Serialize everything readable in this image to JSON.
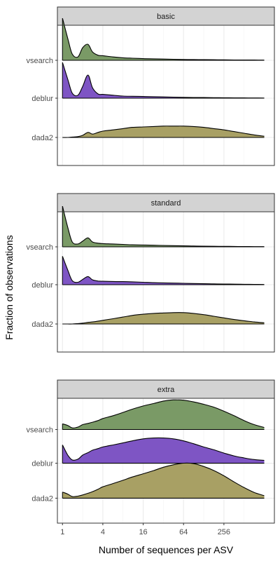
{
  "chart_data": {
    "type": "area",
    "subtype": "ridgeline-density",
    "xlabel": "Number of sequences per ASV",
    "ylabel": "Fraction of observations",
    "x_scale": "log2",
    "x_ticks": [
      1,
      4,
      16,
      64,
      256
    ],
    "x_tick_labels": [
      "1",
      "4",
      "16",
      "64",
      "256"
    ],
    "xlim": [
      0.84,
      1450
    ],
    "grid": true,
    "facets": [
      "basic",
      "standard",
      "extra"
    ],
    "methods": [
      "vsearch",
      "deblur",
      "dada2"
    ],
    "colors": {
      "vsearch": "#7a9a66",
      "deblur": "#7e55c4",
      "dada2": "#a8a064",
      "strip": "#d3d3d3",
      "panel_border": "#333333",
      "grid": "#ebebeb"
    },
    "x": [
      1,
      1.2,
      1.4,
      1.7,
      2,
      2.4,
      2.8,
      3.4,
      4,
      5.7,
      8,
      11,
      16,
      23,
      32,
      45,
      64,
      90,
      128,
      181,
      256,
      362,
      512,
      724,
      1024
    ],
    "panels": [
      {
        "name": "basic",
        "series": [
          {
            "name": "vsearch",
            "values": [
              1.0,
              0.52,
              0.15,
              0.08,
              0.3,
              0.38,
              0.2,
              0.12,
              0.11,
              0.08,
              0.06,
              0.05,
              0.04,
              0.035,
              0.03,
              0.025,
              0.02,
              0.018,
              0.015,
              0.013,
              0.011,
              0.009,
              0.008,
              0.006,
              0.005
            ]
          },
          {
            "name": "deblur",
            "values": [
              0.85,
              0.45,
              0.12,
              0.07,
              0.28,
              0.55,
              0.25,
              0.1,
              0.09,
              0.07,
              0.05,
              0.045,
              0.04,
              0.035,
              0.03,
              0.025,
              0.02,
              0.017,
              0.015,
              0.012,
              0.01,
              0.008,
              0.006,
              0.005,
              0.004
            ]
          },
          {
            "name": "dada2",
            "values": [
              0.0,
              0.0,
              0.01,
              0.02,
              0.05,
              0.12,
              0.08,
              0.12,
              0.15,
              0.18,
              0.21,
              0.24,
              0.25,
              0.26,
              0.27,
              0.27,
              0.27,
              0.26,
              0.24,
              0.21,
              0.18,
              0.14,
              0.1,
              0.06,
              0.03
            ]
          }
        ]
      },
      {
        "name": "standard",
        "series": [
          {
            "name": "vsearch",
            "values": [
              1.0,
              0.48,
              0.12,
              0.07,
              0.14,
              0.22,
              0.12,
              0.09,
              0.08,
              0.07,
              0.06,
              0.05,
              0.045,
              0.04,
              0.035,
              0.03,
              0.025,
              0.02,
              0.017,
              0.014,
              0.012,
              0.01,
              0.008,
              0.006,
              0.005
            ]
          },
          {
            "name": "deblur",
            "values": [
              0.7,
              0.36,
              0.1,
              0.06,
              0.13,
              0.2,
              0.12,
              0.09,
              0.085,
              0.08,
              0.075,
              0.07,
              0.06,
              0.05,
              0.045,
              0.04,
              0.035,
              0.03,
              0.025,
              0.02,
              0.017,
              0.014,
              0.011,
              0.008,
              0.005
            ]
          },
          {
            "name": "dada2",
            "values": [
              0.0,
              0.0,
              0.0,
              0.01,
              0.02,
              0.04,
              0.05,
              0.07,
              0.09,
              0.13,
              0.17,
              0.21,
              0.24,
              0.26,
              0.27,
              0.28,
              0.28,
              0.26,
              0.23,
              0.19,
              0.15,
              0.11,
              0.08,
              0.05,
              0.03
            ]
          }
        ]
      },
      {
        "name": "extra",
        "series": [
          {
            "name": "vsearch",
            "values": [
              0.14,
              0.1,
              0.04,
              0.06,
              0.12,
              0.15,
              0.18,
              0.22,
              0.27,
              0.34,
              0.42,
              0.5,
              0.58,
              0.64,
              0.7,
              0.73,
              0.72,
              0.68,
              0.62,
              0.55,
              0.45,
              0.34,
              0.22,
              0.12,
              0.05
            ]
          },
          {
            "name": "deblur",
            "values": [
              0.45,
              0.2,
              0.08,
              0.1,
              0.2,
              0.26,
              0.32,
              0.36,
              0.4,
              0.45,
              0.5,
              0.55,
              0.6,
              0.62,
              0.62,
              0.6,
              0.55,
              0.48,
              0.4,
              0.33,
              0.25,
              0.18,
              0.13,
              0.09,
              0.07
            ]
          },
          {
            "name": "dada2",
            "values": [
              0.15,
              0.1,
              0.04,
              0.05,
              0.08,
              0.12,
              0.16,
              0.22,
              0.28,
              0.36,
              0.44,
              0.52,
              0.6,
              0.68,
              0.76,
              0.82,
              0.86,
              0.85,
              0.78,
              0.68,
              0.55,
              0.4,
              0.26,
              0.14,
              0.06
            ]
          }
        ]
      }
    ]
  }
}
